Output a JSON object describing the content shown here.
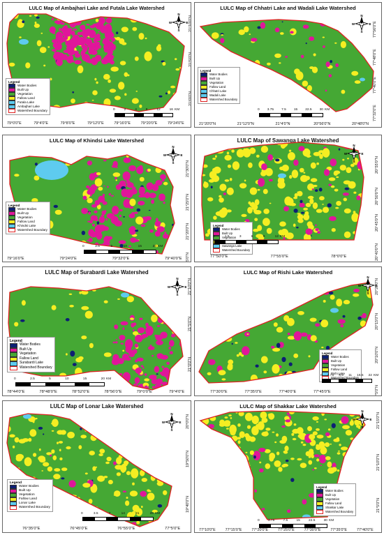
{
  "colors": {
    "water_bodies": "#0d1f73",
    "built_up": "#e0169a",
    "vegetation": "#45a834",
    "fallow_land": "#f5ee22",
    "lake": "#5ecbef",
    "boundary": "#e02020"
  },
  "icons": {
    "north": "north-arrow-compass-icon"
  },
  "panels": [
    {
      "title": "LULC Map of Ambajhari Lake and Futala Lake Watershed",
      "legend": {
        "title": "Legend",
        "items": [
          "Water Bodies",
          "Built Up",
          "Vegetation",
          "Fallow Land",
          "Futala Lake",
          "Ambajhari Lake",
          "Watershed Boundary"
        ]
      },
      "scale": {
        "ticks": [
          "0",
          "2",
          "4",
          "8",
          "12",
          "16"
        ],
        "unit": "KM"
      },
      "x_coords": [
        "79°0'0\"E",
        "79°4'0\"E",
        "79°8'0\"E",
        "79°12'0\"E",
        "79°16'0\"E",
        "79°20'0\"E",
        "79°24'0\"E"
      ],
      "y_coords": [
        "21°10'0\"N",
        "21°5'0\"N",
        "21°0'0\"N"
      ],
      "compass": {
        "n": "N",
        "s": "S",
        "e": "E",
        "w": "W"
      }
    },
    {
      "title": "LULC Map of Chhatri Lake and Wadali Lake Watershed",
      "legend": {
        "title": "Legend",
        "items": [
          "Water Bodies",
          "Built Up",
          "Vegetation",
          "Fallow Land",
          "Chhatri Lake",
          "Wadali Lake",
          "Watershed Boundary"
        ]
      },
      "scale": {
        "ticks": [
          "0",
          "3.75",
          "7.5",
          "15",
          "22.5",
          "30"
        ],
        "unit": "KM"
      },
      "x_coords": [
        "21°20'0\"N",
        "21°12'0\"N",
        "21°4'0\"N",
        "20°56'0\"N",
        "20°48'0\"N"
      ],
      "y_coords": [
        "77°56'0\"E",
        "77°48'0\"E",
        "77°40'0\"E",
        "77°32'0\"E"
      ],
      "compass": {
        "n": "N",
        "s": "S",
        "e": "E",
        "w": "W"
      }
    },
    {
      "title": "LULC Map of Khindsi Lake Watershed",
      "legend": {
        "title": "Legend",
        "items": [
          "Water Bodies",
          "Built Up",
          "Vegetation",
          "Fallow Land",
          "Khindsi Lake",
          "Watershed Boundary"
        ]
      },
      "scale": {
        "ticks": [
          "0",
          "2.5",
          "5",
          "10",
          "15",
          "20"
        ],
        "unit": "KM"
      },
      "x_coords": [
        "79°16'0\"E",
        "79°24'0\"E",
        "79°32'0\"E",
        "79°40'0\"E"
      ],
      "y_coords": [
        "21°30'0\"N",
        "21°25'0\"N",
        "21°20'0\"N",
        "21°15'0\"N"
      ],
      "compass": {
        "n": "N",
        "s": "S",
        "e": "E",
        "w": "W"
      }
    },
    {
      "title": "LULC Map of Sawanga Lake Watershed",
      "legend": {
        "title": "Legend",
        "items": [
          "Water Bodies",
          "Built Up",
          "Vegetation",
          "Fallow Land",
          "Sawanga Lake",
          "Watershed Boundary"
        ]
      },
      "scale": {
        "ticks": [
          "0",
          "1.5",
          "3",
          "6",
          "9",
          "12"
        ],
        "unit": "KM"
      },
      "x_coords": [
        "77°50'0\"E",
        "77°55'0\"E",
        "78°0'0\"E"
      ],
      "y_coords": [
        "20°55'0\"N",
        "20°50'0\"N",
        "20°45'0\"N",
        "20°40'0\"N"
      ],
      "compass": {
        "n": "N",
        "s": "S",
        "e": "E",
        "w": "W"
      }
    },
    {
      "title": "LULC Map of Surabardi Lake Watershed",
      "legend": {
        "title": "Legend",
        "items": [
          "Water Bodies",
          "Built Up",
          "Vegetation",
          "Fallow Land",
          "Surabardi Lake",
          "Watershed Boundary"
        ]
      },
      "scale": {
        "ticks": [
          "0",
          "2.5",
          "5",
          "10",
          "15",
          "20"
        ],
        "unit": "KM"
      },
      "x_coords": [
        "78°44'0\"E",
        "78°48'0\"E",
        "78°52'0\"E",
        "78°56'0\"E",
        "79°0'0\"E",
        "79°4'0\"E"
      ],
      "y_coords": [
        "21°10'0\"N",
        "21°5'0\"N",
        "21°0'0\"N"
      ],
      "compass": {
        "n": "N",
        "s": "S",
        "e": "E",
        "w": "W"
      }
    },
    {
      "title": "LULC Map of Rishi Lake Watershed",
      "legend": {
        "title": "Legend",
        "items": [
          "Water Bodies",
          "Built Up",
          "Vegetation",
          "Fallow Land",
          "Rishi Lake",
          "Watershed Boundary"
        ]
      },
      "scale": {
        "ticks": [
          "0",
          "2.75",
          "5.5",
          "11",
          "16.5",
          "22"
        ],
        "unit": "KM"
      },
      "x_coords": [
        "77°30'0\"E",
        "77°35'0\"E",
        "77°40'0\"E",
        "77°45'0\"E"
      ],
      "y_coords": [
        "20°20'0\"N",
        "20°15'0\"N",
        "20°10'0\"N",
        "20°5'0\"N"
      ],
      "compass": {
        "n": "N",
        "s": "S",
        "e": "E",
        "w": "W"
      }
    },
    {
      "title": "LULC Map of Lonar Lake Watershed",
      "legend": {
        "title": "Legend",
        "items": [
          "Water Bodies",
          "Built Up",
          "Vegetation",
          "Fallow Land",
          "Lonar Lake",
          "Watershed Boundary"
        ]
      },
      "scale": {
        "ticks": [
          "0",
          "3.5",
          "7",
          "14",
          "21",
          "28"
        ],
        "unit": "KM"
      },
      "x_coords": [
        "76°35'0\"E",
        "76°45'0\"E",
        "76°55'0\"E",
        "77°5'0\"E"
      ],
      "y_coords": [
        "20°0'0\"N",
        "19°50'0\"N",
        "19°40'0\"N"
      ],
      "compass": {
        "n": "N",
        "s": "S",
        "e": "E",
        "w": "W"
      }
    },
    {
      "title": "LULC Map of Shakkar Lake Watershed",
      "legend": {
        "title": "Legend",
        "items": [
          "Water Bodies",
          "Built Up",
          "Vegetation",
          "Fallow Land",
          "Shakkar Lake",
          "Watershed Boundary"
        ]
      },
      "scale": {
        "ticks": [
          "0",
          "3.75",
          "7.5",
          "15",
          "22.5",
          "30"
        ],
        "unit": "KM"
      },
      "x_coords": [
        "77°10'0\"E",
        "77°15'0\"E",
        "77°20'0\"E",
        "77°25'0\"E",
        "77°30'0\"E",
        "77°35'0\"E",
        "77°40'0\"E"
      ],
      "y_coords": [
        "21°15'0\"N",
        "21°10'0\"N",
        "21°5'0\"N"
      ],
      "compass": {
        "n": "N",
        "s": "S",
        "e": "E",
        "w": "W"
      }
    }
  ]
}
